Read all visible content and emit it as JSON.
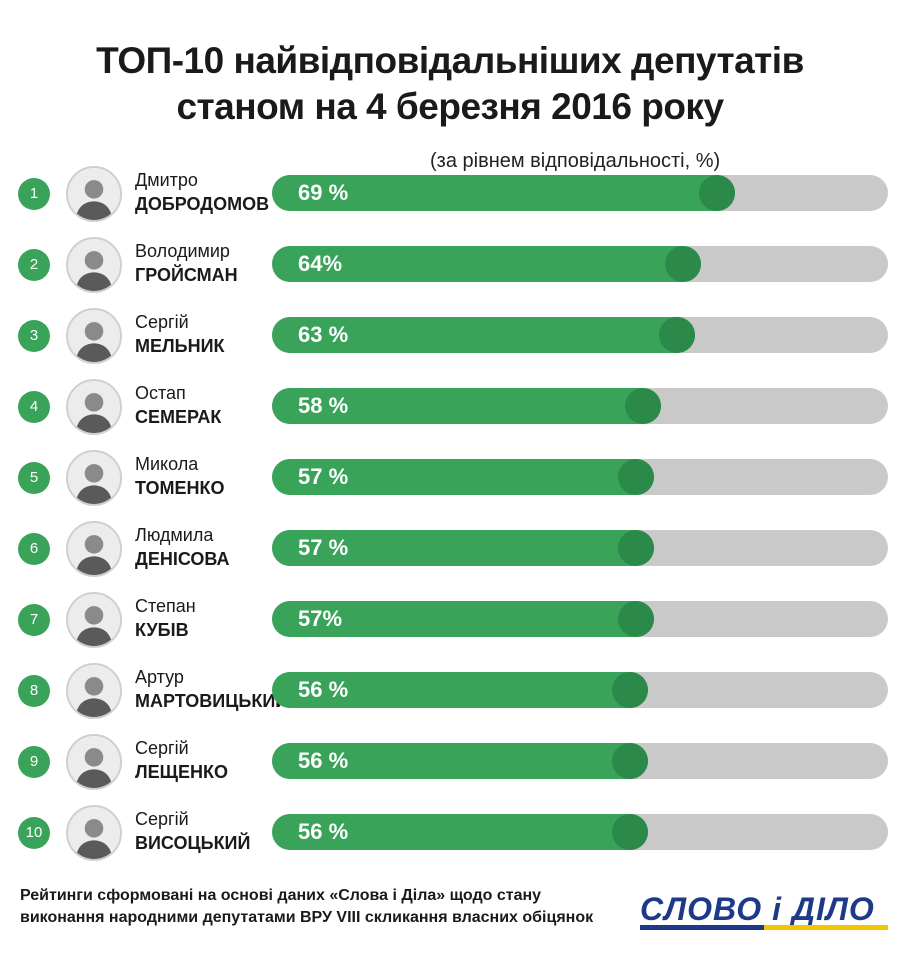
{
  "title_line1": "ТОП-10 найвідповідальніших депутатів",
  "title_line2": "станом на 4 березня 2016 року",
  "subtitle": "(за рівнем відповідальності, %)",
  "footer_line1": "Рейтинги сформовані на основі даних «Слова і Діла» щодо стану",
  "footer_line2": "виконання народними депутатами ВРУ VIII скликання власних обіцянок",
  "logo_text": "СЛОВО і ДІЛО",
  "colors": {
    "green": "#3aa35a",
    "green_dark": "#2b8a4a",
    "track": "#c9c9c9",
    "logo_blue": "#1d3a8a",
    "logo_yellow": "#f5c400"
  },
  "chart_data": {
    "type": "bar",
    "orientation": "horizontal",
    "title": "ТОП-10 найвідповідальніших депутатів станом на 4 березня 2016 року",
    "subtitle": "(за рівнем відповідальності, %)",
    "xlim": [
      0,
      100
    ],
    "grid": false,
    "items": [
      {
        "rank": "1",
        "first": "Дмитро",
        "last": "ДОБРОДОМОВ",
        "value": 69,
        "label": "69 %"
      },
      {
        "rank": "2",
        "first": "Володимир",
        "last": "ГРОЙСМАН",
        "value": 64,
        "label": "64%"
      },
      {
        "rank": "3",
        "first": "Сергій",
        "last": "МЕЛЬНИК",
        "value": 63,
        "label": "63 %"
      },
      {
        "rank": "4",
        "first": "Остап",
        "last": "СЕМЕРАК",
        "value": 58,
        "label": "58 %"
      },
      {
        "rank": "5",
        "first": "Микола",
        "last": "ТОМЕНКО",
        "value": 57,
        "label": "57 %"
      },
      {
        "rank": "6",
        "first": "Людмила",
        "last": "ДЕНІСОВА",
        "value": 57,
        "label": "57 %"
      },
      {
        "rank": "7",
        "first": "Степан",
        "last": "КУБІВ",
        "value": 57,
        "label": "57%"
      },
      {
        "rank": "8",
        "first": "Артур",
        "last": "МАРТОВИЦЬКИЙ",
        "value": 56,
        "label": "56 %"
      },
      {
        "rank": "9",
        "first": "Сергій",
        "last": "ЛЕЩЕНКО",
        "value": 56,
        "label": "56 %"
      },
      {
        "rank": "10",
        "first": "Сергій",
        "last": "ВИСОЦЬКИЙ",
        "value": 56,
        "label": "56 %"
      }
    ]
  }
}
